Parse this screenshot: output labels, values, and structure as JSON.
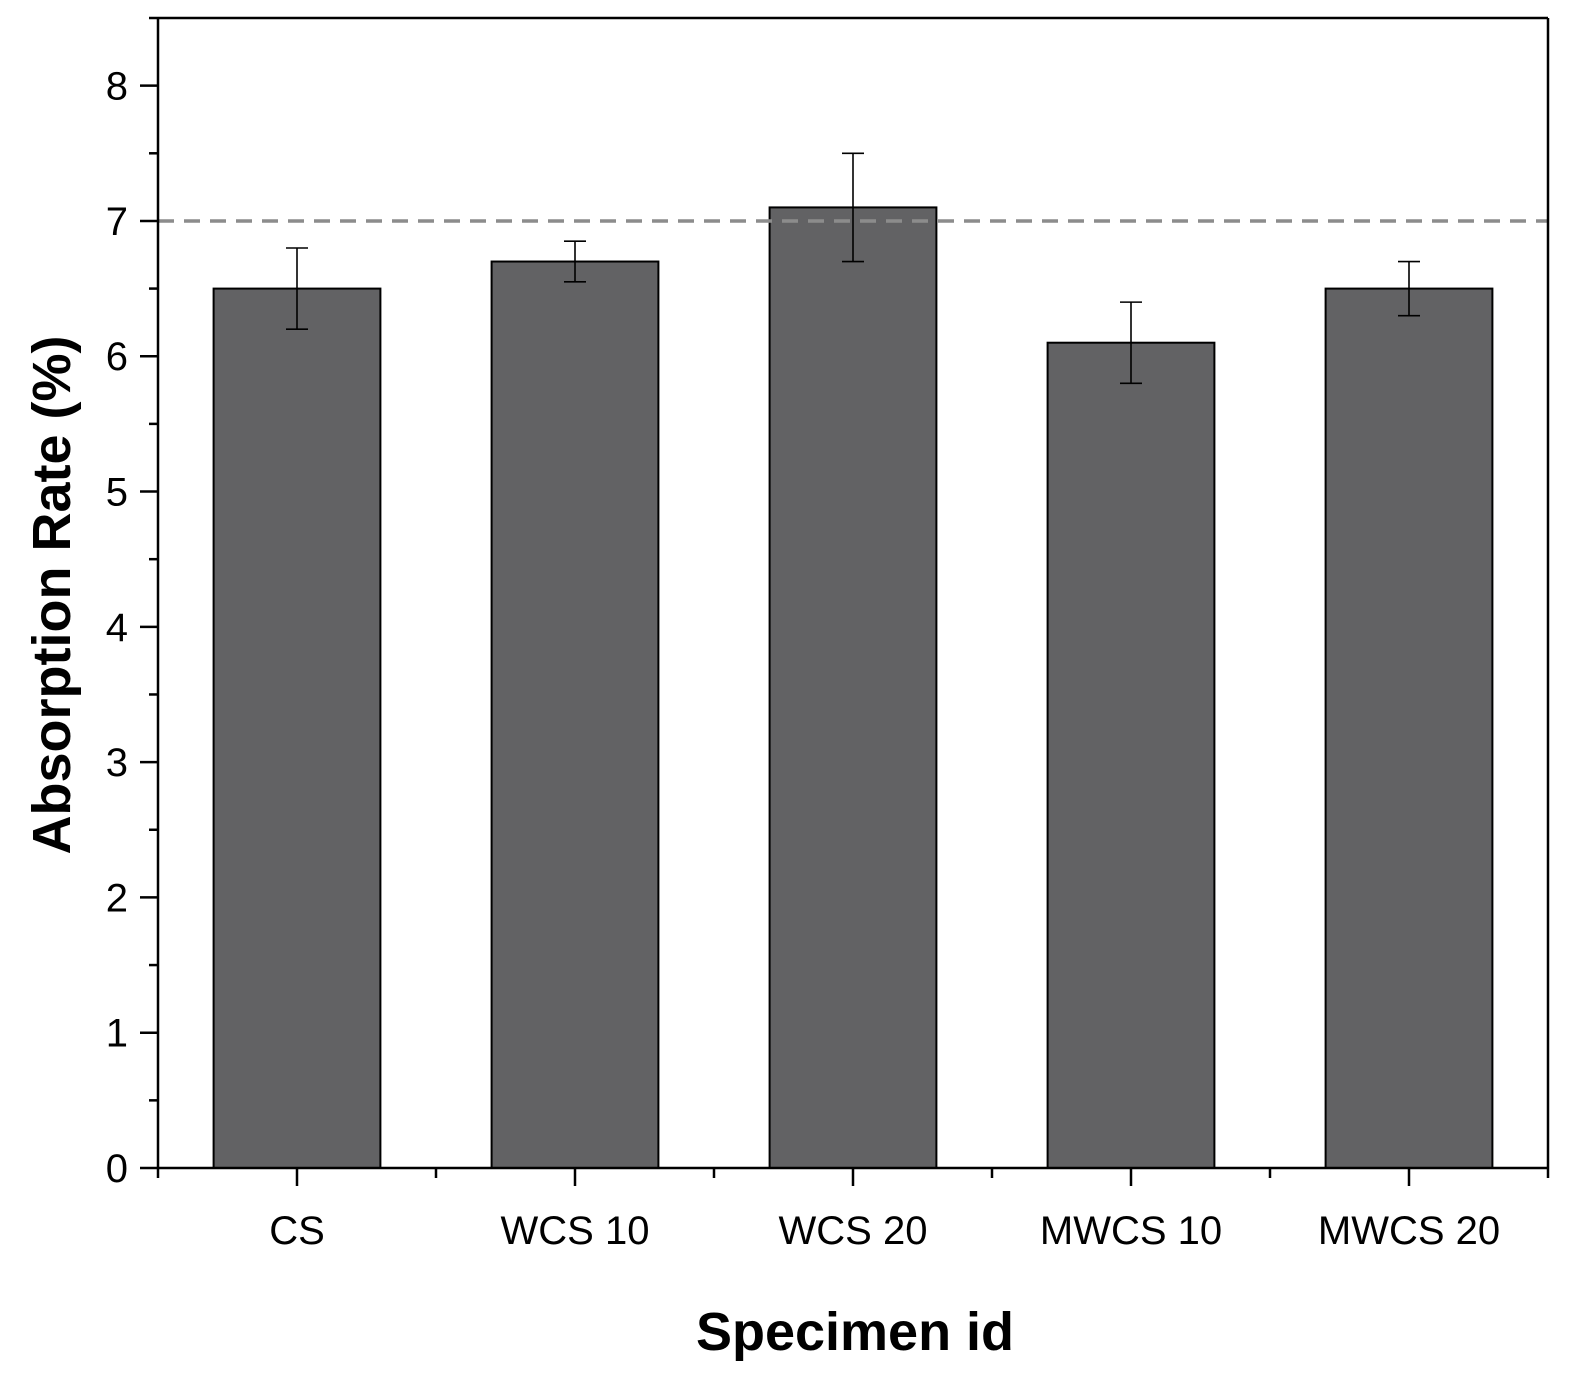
{
  "chart_data": {
    "type": "bar",
    "title": "",
    "xlabel": "Specimen id",
    "ylabel": "Absorption Rate (%)",
    "categories": [
      "CS",
      "WCS 10",
      "WCS 20",
      "MWCS 10",
      "MWCS 20"
    ],
    "values": [
      6.5,
      6.7,
      7.1,
      6.1,
      6.5
    ],
    "errors": [
      0.3,
      0.15,
      0.4,
      0.3,
      0.2
    ],
    "ylim": [
      0,
      8.5
    ],
    "yticks": [
      0,
      1,
      2,
      3,
      4,
      5,
      6,
      7,
      8
    ],
    "y_minor_step": 0.5,
    "reference_line": {
      "value": 7,
      "style": "dashed"
    },
    "grid": false,
    "colors": {
      "bar_fill": "#626264",
      "bar_edge": "#000000",
      "reference_line": "#8c8c8c",
      "axis": "#000000"
    }
  }
}
